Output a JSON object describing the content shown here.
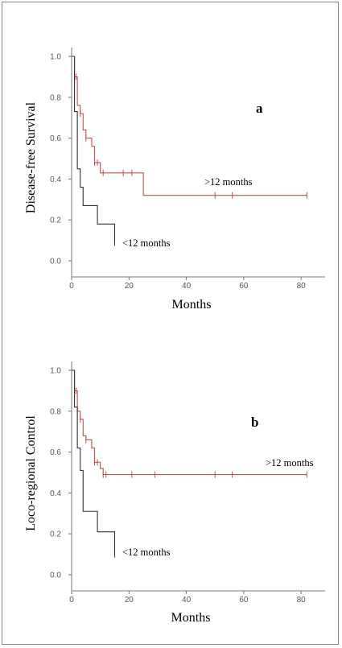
{
  "chart_data": [
    {
      "type": "line",
      "panel_label": "a",
      "xlabel": "Months",
      "ylabel": "Disease-free Survival",
      "xlim": [
        0,
        85
      ],
      "ylim": [
        0,
        1.0
      ],
      "x_ticks": [
        "0",
        "20",
        "40",
        "60",
        "80"
      ],
      "y_ticks": [
        "0.0",
        "0.2",
        "0.4",
        "0.6",
        "0.8",
        "1.0"
      ],
      "series": [
        {
          "name": ">12 months",
          "color": "#c0504d",
          "steps": [
            [
              0,
              1.0
            ],
            [
              1,
              0.9
            ],
            [
              2,
              0.76
            ],
            [
              3,
              0.72
            ],
            [
              4,
              0.64
            ],
            [
              5,
              0.6
            ],
            [
              7,
              0.56
            ],
            [
              8,
              0.48
            ],
            [
              10,
              0.43
            ],
            [
              25,
              0.32
            ],
            [
              82,
              0.32
            ]
          ],
          "censored": [
            [
              1.5,
              0.9
            ],
            [
              3,
              0.72
            ],
            [
              5,
              0.6
            ],
            [
              8,
              0.48
            ],
            [
              9,
              0.48
            ],
            [
              11,
              0.43
            ],
            [
              18,
              0.43
            ],
            [
              21,
              0.43
            ],
            [
              50,
              0.32
            ],
            [
              56,
              0.32
            ],
            [
              82,
              0.32
            ]
          ]
        },
        {
          "name": "<12 months",
          "color": "#333333",
          "steps": [
            [
              0,
              1.0
            ],
            [
              1,
              0.73
            ],
            [
              2,
              0.45
            ],
            [
              3,
              0.36
            ],
            [
              4,
              0.27
            ],
            [
              9,
              0.18
            ],
            [
              15,
              0.09
            ],
            [
              15,
              0.09
            ]
          ],
          "censored": [
            [
              15,
              0.09
            ]
          ]
        }
      ]
    },
    {
      "type": "line",
      "panel_label": "b",
      "xlabel": "Months",
      "ylabel": "Loco-regional Control",
      "xlim": [
        0,
        85
      ],
      "ylim": [
        0,
        1.0
      ],
      "x_ticks": [
        "0",
        "20",
        "40",
        "60",
        "80"
      ],
      "y_ticks": [
        "0.0",
        "0.2",
        "0.4",
        "0.6",
        "0.8",
        "1.0"
      ],
      "series": [
        {
          "name": ">12 months",
          "color": "#c0504d",
          "steps": [
            [
              0,
              1.0
            ],
            [
              1,
              0.9
            ],
            [
              2,
              0.8
            ],
            [
              3,
              0.76
            ],
            [
              4,
              0.68
            ],
            [
              5,
              0.66
            ],
            [
              7,
              0.62
            ],
            [
              8,
              0.55
            ],
            [
              10,
              0.52
            ],
            [
              11,
              0.49
            ],
            [
              82,
              0.49
            ]
          ],
          "censored": [
            [
              1.5,
              0.9
            ],
            [
              3,
              0.76
            ],
            [
              5,
              0.66
            ],
            [
              8,
              0.55
            ],
            [
              9,
              0.55
            ],
            [
              11,
              0.49
            ],
            [
              12,
              0.49
            ],
            [
              21,
              0.49
            ],
            [
              29,
              0.49
            ],
            [
              50,
              0.49
            ],
            [
              56,
              0.49
            ],
            [
              82,
              0.49
            ]
          ]
        },
        {
          "name": "<12 months",
          "color": "#333333",
          "steps": [
            [
              0,
              1.0
            ],
            [
              1,
              0.82
            ],
            [
              2,
              0.62
            ],
            [
              3,
              0.51
            ],
            [
              4,
              0.31
            ],
            [
              9,
              0.21
            ],
            [
              15,
              0.1
            ],
            [
              15,
              0.1
            ]
          ],
          "censored": [
            [
              15,
              0.1
            ]
          ]
        }
      ]
    }
  ],
  "labels": {
    "a": {
      "panel": "a",
      "xlabel": "Months",
      "ylabel": "Disease-free Survival",
      "series_high": ">12 months",
      "series_low": "<12 months"
    },
    "b": {
      "panel": "b",
      "xlabel": "Months",
      "ylabel": "Loco-regional Control",
      "series_high": ">12 months",
      "series_low": "<12 months"
    }
  }
}
